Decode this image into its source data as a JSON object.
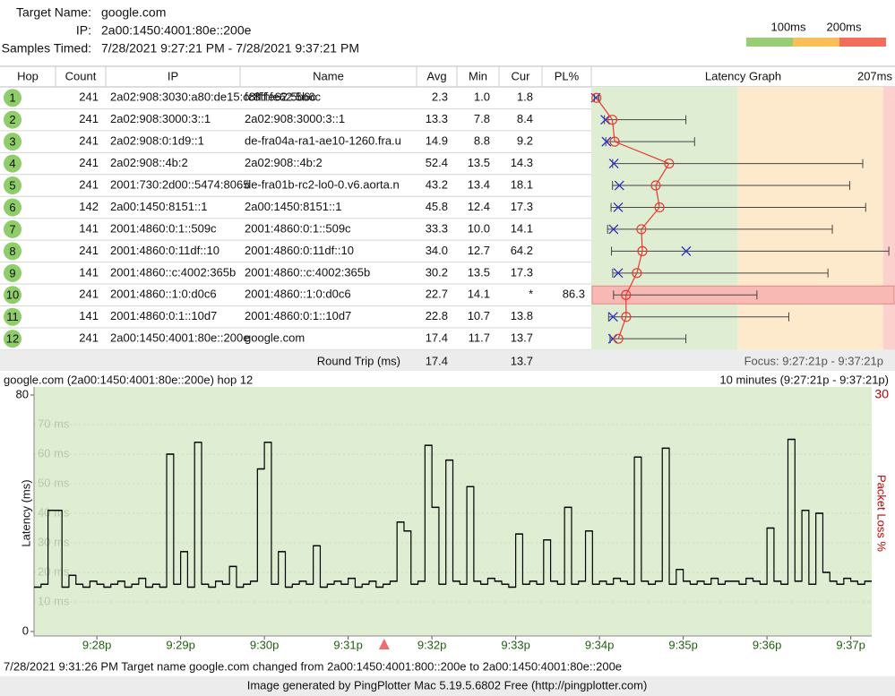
{
  "header": {
    "target_name_label": "Target Name:",
    "target_name": "google.com",
    "ip_label": "IP:",
    "ip": "2a00:1450:4001:80e::200e",
    "samples_label": "Samples Timed:",
    "samples": "7/28/2021 9:27:21 PM - 7/28/2021 9:37:21 PM"
  },
  "scale_legend": {
    "ticks": [
      {
        "value": 100,
        "label": "100ms"
      },
      {
        "value": 200,
        "label": "200ms"
      }
    ],
    "colors": [
      "#98cd75",
      "#fbbf5a",
      "#f56c5c"
    ]
  },
  "table": {
    "columns": [
      "Hop",
      "Count",
      "IP",
      "Name",
      "Avg",
      "Min",
      "Cur",
      "PL%",
      "Latency Graph"
    ],
    "rows": [
      [
        "1",
        "241",
        "2a02:908:3030:a80:de15:c8ff:fe62:5b6c",
        "fc8ff:fe62:5b6c",
        "2.3",
        "1.0",
        "1.8",
        null
      ],
      [
        "2",
        "241",
        "2a02:908:3000:3::1",
        "2a02:908:3000:3::1",
        "13.3",
        "7.8",
        "8.4",
        null
      ],
      [
        "3",
        "241",
        "2a02:908:0:1d9::1",
        "de-fra04a-ra1-ae10-1260.fra.u",
        "14.9",
        "8.8",
        "9.2",
        null
      ],
      [
        "4",
        "241",
        "2a02:908::4b:2",
        "2a02:908::4b:2",
        "52.4",
        "13.5",
        "14.3",
        null
      ],
      [
        "5",
        "241",
        "2001:730:2d00::5474:8065",
        "de-fra01b-rc2-lo0-0.v6.aorta.n",
        "43.2",
        "13.4",
        "18.1",
        null
      ],
      [
        "6",
        "142",
        "2a00:1450:8151::1",
        "2a00:1450:8151::1",
        "45.8",
        "12.4",
        "17.3",
        null
      ],
      [
        "7",
        "141",
        "2001:4860:0:1::509c",
        "2001:4860:0:1::509c",
        "33.3",
        "10.0",
        "14.1",
        null
      ],
      [
        "8",
        "241",
        "2001:4860:0:11df::10",
        "2001:4860:0:11df::10",
        "34.0",
        "12.7",
        "64.2",
        null
      ],
      [
        "9",
        "141",
        "2001:4860::c:4002:365b",
        "2001:4860::c:4002:365b",
        "30.2",
        "13.5",
        "17.3",
        null
      ],
      [
        "10",
        "241",
        "2001:4860::1:0:d0c6",
        "2001:4860::1:0:d0c6",
        "22.7",
        "14.1",
        "*",
        "86.3"
      ],
      [
        "11",
        "141",
        "2001:4860:0:1::10d7",
        "2001:4860:0:1::10d7",
        "22.8",
        "10.7",
        "13.8",
        null
      ],
      [
        "12",
        "241",
        "2a00:1450:4001:80e::200e",
        "google.com",
        "17.4",
        "11.7",
        "13.7",
        null
      ]
    ],
    "footer": {
      "label": "Round Trip (ms)",
      "avg": "17.4",
      "cur": "13.7",
      "focus": "Focus: 9:27:21p - 9:37:21p"
    }
  },
  "latency_graph": {
    "xlim": [
      0,
      {
        "value": 207,
        "label": "207ms"
      }
    ],
    "max": [
      4,
      64,
      70,
      186,
      177,
      188,
      165,
      204,
      162,
      113,
      135,
      64
    ],
    "avg_color": "#e8392e",
    "cur_color": "#2c2fc8"
  },
  "chart_data": {
    "type": "step",
    "title": "google.com (2a00:1450:4001:80e::200e) hop 12",
    "subtitle": "10 minutes (9:27:21p - 9:37:21p)",
    "y_label": "Latency (ms)",
    "y2_label": "Packet Loss %",
    "xlim": [
      0.25,
      10.25
    ],
    "xticks": [
      {
        "value": 1,
        "label": "9:28p"
      },
      {
        "value": 2,
        "label": "9:29p"
      },
      {
        "value": 3,
        "label": "9:30p"
      },
      {
        "value": 4,
        "label": "9:31p"
      },
      {
        "value": 5,
        "label": "9:32p"
      },
      {
        "value": 6,
        "label": "9:33p"
      },
      {
        "value": 7,
        "label": "9:34p"
      },
      {
        "value": 8,
        "label": "9:35p"
      },
      {
        "value": 9,
        "label": "9:36p"
      },
      {
        "value": 10,
        "label": "9:37p"
      }
    ],
    "ylim": [
      0,
      80
    ],
    "yticks": [
      0,
      {
        "value": 10,
        "label": "10 ms"
      },
      {
        "value": 20,
        "label": "20 ms"
      },
      {
        "value": 30,
        "label": "30 ms"
      },
      {
        "value": 40,
        "label": "40 ms"
      },
      {
        "value": 50,
        "label": "50 ms"
      },
      {
        "value": 60,
        "label": "60 ms"
      },
      {
        "value": 70,
        "label": "70 ms"
      },
      80
    ],
    "y2lim": [
      0,
      30
    ],
    "y2ticks": [
      30
    ],
    "event_time": 4.43,
    "color": "#000000",
    "values": [
      15,
      16,
      41,
      41,
      15,
      19,
      16,
      15,
      17,
      16,
      15,
      16,
      17,
      15,
      16,
      18,
      15,
      16,
      15,
      60,
      16,
      27,
      15,
      64,
      16,
      15,
      17,
      16,
      22,
      15,
      16,
      17,
      55,
      64,
      16,
      27,
      15,
      16,
      17,
      16,
      29,
      15,
      16,
      17,
      16,
      18,
      15,
      16,
      17,
      15,
      16,
      17,
      37,
      34,
      16,
      17,
      63,
      42,
      16,
      58,
      17,
      16,
      49,
      17,
      16,
      18,
      17,
      16,
      15,
      33,
      16,
      17,
      16,
      31,
      17,
      16,
      42,
      16,
      17,
      34,
      16,
      17,
      16,
      18,
      17,
      16,
      59,
      17,
      16,
      17,
      62,
      16,
      21,
      17,
      16,
      17,
      16,
      18,
      16,
      17,
      17,
      16,
      18,
      17,
      16,
      35,
      17,
      16,
      65,
      17,
      41,
      16,
      40,
      20,
      17,
      16,
      18,
      17,
      16,
      17
    ]
  },
  "status": "7/28/2021 9:31:26 PM Target name google.com changed from 2a00:1450:4001:800::200e to 2a00:1450:4001:80e::200e",
  "footer": "Image generated by PingPlotter Mac 5.19.5.6802 Free (http://pingplotter.com)"
}
